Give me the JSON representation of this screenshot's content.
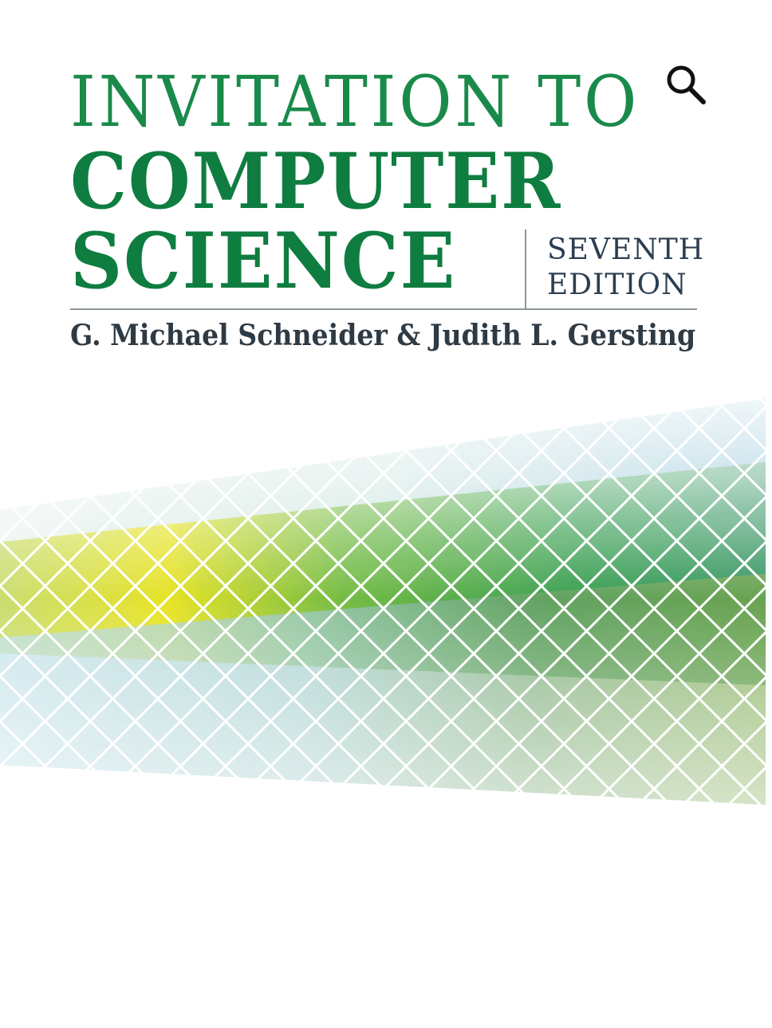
{
  "cover": {
    "title_line1": "INVITATION TO",
    "title_line2": "COMPUTER",
    "title_line3": "SCIENCE",
    "edition_line1": "SEVENTH",
    "edition_line2": "EDITION",
    "authors": "G. Michael Schneider & Judith L. Gersting"
  },
  "toolbar": {
    "zoom_icon": "magnifier-icon"
  },
  "colors": {
    "title_green": "#0e7d3f",
    "title_light_green": "#1a8a4a",
    "author_text": "#2e3a44",
    "mosaic_yellow": "#e6e21a",
    "mosaic_green": "#2f9a48",
    "mosaic_blue": "#6aaed0"
  }
}
